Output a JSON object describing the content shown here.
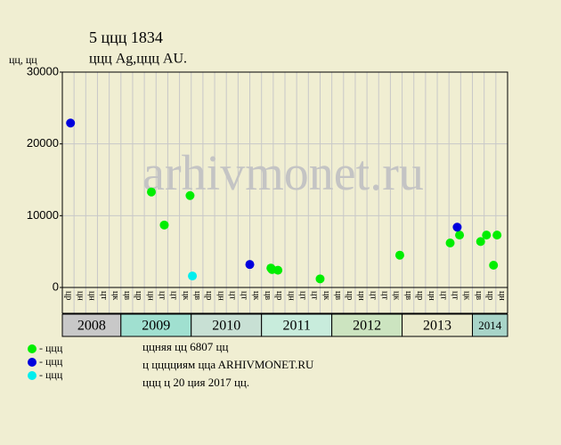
{
  "chart_data": {
    "type": "scatter",
    "title": "5 ццц 1834",
    "subtitle": "ццц Ag,ццц AU.",
    "y_label": "цц, цц",
    "watermark": "arhivmonet.ru",
    "ylim": [
      0,
      30000
    ],
    "yticks": [
      0,
      10000,
      20000,
      30000
    ],
    "xlim": [
      0,
      38
    ],
    "grid": true,
    "years": [
      {
        "label": "2008",
        "color": "#c8c8c8",
        "months": [
          "цр",
          "цн",
          "цн",
          "цт",
          "цк"
        ]
      },
      {
        "label": "2009",
        "color": "#a0e0d0",
        "months": [
          "цв",
          "цр",
          "цн",
          "цт",
          "цт",
          "цк"
        ]
      },
      {
        "label": "2010",
        "color": "#c8e0d4",
        "months": [
          "цв",
          "цр",
          "цн",
          "цт",
          "цт",
          "цк"
        ]
      },
      {
        "label": "2011",
        "color": "#c8ecdc",
        "months": [
          "цв",
          "цр",
          "цн",
          "цт",
          "цт",
          "цк"
        ]
      },
      {
        "label": "2012",
        "color": "#cce4c0",
        "months": [
          "цв",
          "цр",
          "цн",
          "цт",
          "цт",
          "цк"
        ]
      },
      {
        "label": "2013",
        "color": "#eaeacc",
        "months": [
          "цв",
          "цр",
          "цн",
          "цт",
          "цт",
          "цк"
        ]
      },
      {
        "label": "2014",
        "color": "#a8d4c8",
        "months": [
          "цв",
          "цр",
          "цн"
        ]
      }
    ],
    "series": [
      {
        "name": "- ццц",
        "color": "#00ee00",
        "x": [
          7.6,
          8.7,
          10.9,
          17.8,
          17.9,
          18.4,
          22.0,
          28.8,
          33.1,
          33.9,
          35.7,
          36.2,
          36.8,
          37.1
        ],
        "values": [
          13300,
          8700,
          12800,
          2700,
          2500,
          2400,
          1200,
          4500,
          6200,
          7300,
          6400,
          7300,
          3100,
          7300
        ]
      },
      {
        "name": "- ццц",
        "color": "#0000dd",
        "x": [
          0.7,
          16.0,
          33.7
        ],
        "values": [
          22900,
          3200,
          8400
        ]
      },
      {
        "name": "- ццц",
        "color": "#00eeee",
        "x": [
          11.1
        ],
        "values": [
          1600
        ]
      }
    ],
    "notes": [
      "ццняя цц 6807 цц",
      "ц цццциям ццa ARHIVMONET.RU",
      "ццц ц 20 ция 2017 цц."
    ]
  }
}
